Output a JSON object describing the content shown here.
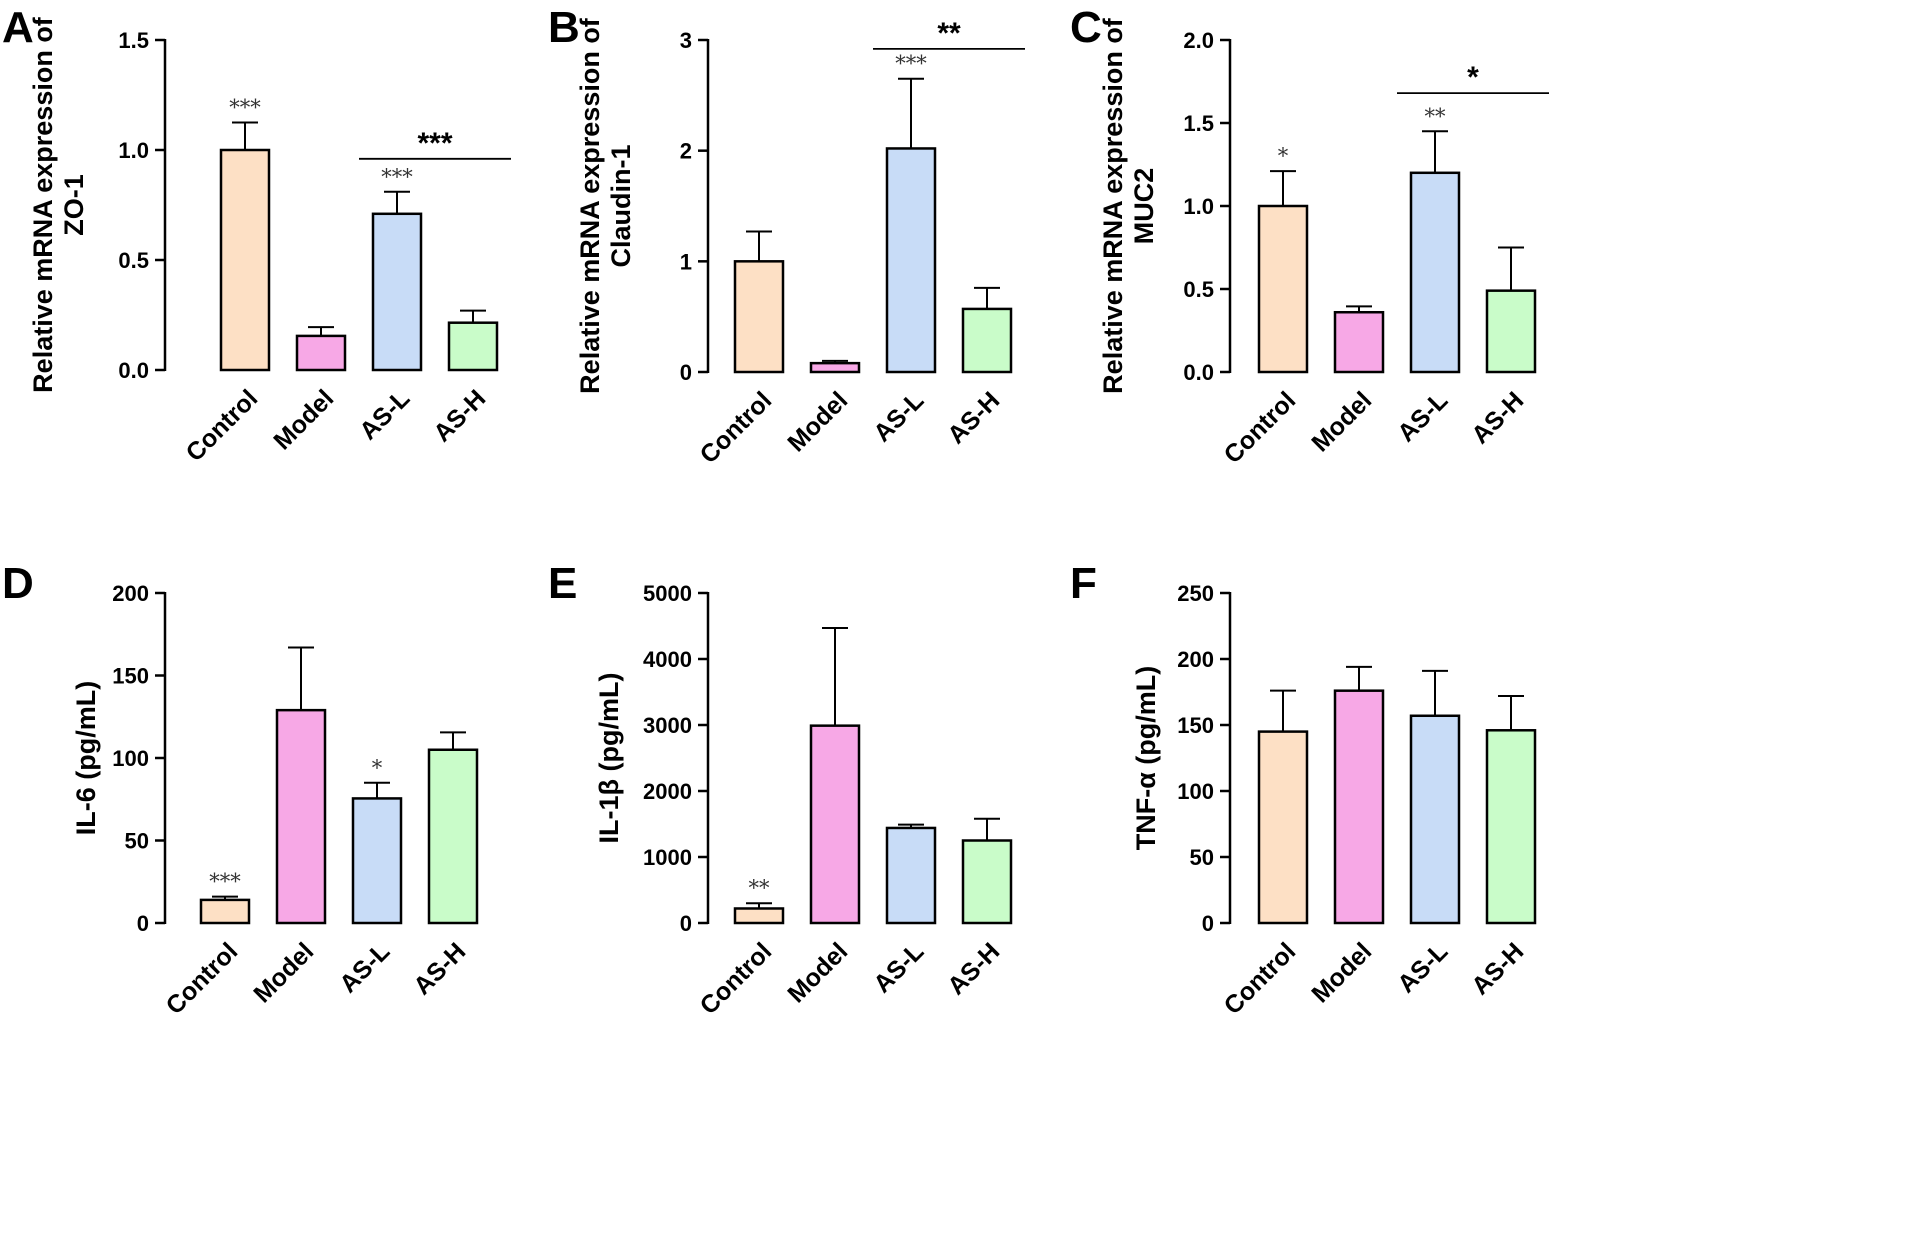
{
  "colors": {
    "Control": "#fde0c5",
    "Model": "#f7a8e6",
    "AS-L": "#c8dcf7",
    "AS-H": "#c9fcc9"
  },
  "chart_data": [
    {
      "panel": "A",
      "type": "bar",
      "ylabel": [
        "Relative mRNA expression of",
        "ZO-1"
      ],
      "categories": [
        "Control",
        "Model",
        "AS-L",
        "AS-H"
      ],
      "values": [
        1.0,
        0.155,
        0.71,
        0.215
      ],
      "errors": [
        0.125,
        0.04,
        0.1,
        0.055
      ],
      "ylim": [
        0,
        1.5
      ],
      "yticks": [
        0.0,
        0.5,
        1.0,
        1.5
      ],
      "ytick_labels": [
        "0.0",
        "0.5",
        "1.0",
        "1.5"
      ],
      "annotations": [
        "***",
        "",
        "***",
        ""
      ],
      "comparison": {
        "from": 2,
        "to": 3,
        "label": "***",
        "y": 0.96
      }
    },
    {
      "panel": "B",
      "type": "bar",
      "ylabel": [
        "Relative mRNA expression of",
        "Claudin-1"
      ],
      "categories": [
        "Control",
        "Model",
        "AS-L",
        "AS-H"
      ],
      "values": [
        1.0,
        0.08,
        2.02,
        0.57
      ],
      "errors": [
        0.27,
        0.02,
        0.63,
        0.19
      ],
      "ylim": [
        0,
        3
      ],
      "yticks": [
        0,
        1,
        2,
        3
      ],
      "ytick_labels": [
        "0",
        "1",
        "2",
        "3"
      ],
      "annotations": [
        "",
        "",
        "***",
        ""
      ],
      "comparison": {
        "from": 2,
        "to": 3,
        "label": "**",
        "y": 2.92
      }
    },
    {
      "panel": "C",
      "type": "bar",
      "ylabel": [
        "Relative mRNA expression of",
        "MUC2"
      ],
      "categories": [
        "Control",
        "Model",
        "AS-L",
        "AS-H"
      ],
      "values": [
        1.0,
        0.36,
        1.2,
        0.49
      ],
      "errors": [
        0.21,
        0.035,
        0.25,
        0.26
      ],
      "ylim": [
        0,
        2.0
      ],
      "yticks": [
        0.0,
        0.5,
        1.0,
        1.5,
        2.0
      ],
      "ytick_labels": [
        "0.0",
        "0.5",
        "1.0",
        "1.5",
        "2.0"
      ],
      "annotations": [
        "*",
        "",
        "**",
        ""
      ],
      "comparison": {
        "from": 2,
        "to": 3,
        "label": "*",
        "y": 1.68
      }
    },
    {
      "panel": "D",
      "type": "bar",
      "ylabel": [
        "IL-6 (pg/mL)"
      ],
      "categories": [
        "Control",
        "Model",
        "AS-L",
        "AS-H"
      ],
      "values": [
        14,
        129,
        75.5,
        105
      ],
      "errors": [
        2,
        38,
        9.5,
        10.5
      ],
      "ylim": [
        0,
        200
      ],
      "yticks": [
        0,
        50,
        100,
        150,
        200
      ],
      "ytick_labels": [
        "0",
        "50",
        "100",
        "150",
        "200"
      ],
      "annotations": [
        "***",
        "",
        "*",
        ""
      ],
      "comparison": null
    },
    {
      "panel": "E",
      "type": "bar",
      "ylabel": [
        "IL-1β (pg/mL)"
      ],
      "categories": [
        "Control",
        "Model",
        "AS-L",
        "AS-H"
      ],
      "values": [
        220,
        2990,
        1440,
        1250
      ],
      "errors": [
        80,
        1480,
        50,
        330
      ],
      "ylim": [
        0,
        5000
      ],
      "yticks": [
        0,
        1000,
        2000,
        3000,
        4000,
        5000
      ],
      "ytick_labels": [
        "0",
        "1000",
        "2000",
        "3000",
        "4000",
        "5000"
      ],
      "annotations": [
        "**",
        "",
        "",
        ""
      ],
      "comparison": null
    },
    {
      "panel": "F",
      "type": "bar",
      "ylabel": [
        "TNF-α (pg/mL)"
      ],
      "categories": [
        "Control",
        "Model",
        "AS-L",
        "AS-H"
      ],
      "values": [
        145,
        176,
        157,
        146
      ],
      "errors": [
        31,
        18,
        34,
        26
      ],
      "ylim": [
        0,
        250
      ],
      "yticks": [
        0,
        50,
        100,
        150,
        200,
        250
      ],
      "ytick_labels": [
        "0",
        "50",
        "100",
        "150",
        "200",
        "250"
      ],
      "annotations": [
        "",
        "",
        "",
        ""
      ],
      "comparison": null
    }
  ]
}
